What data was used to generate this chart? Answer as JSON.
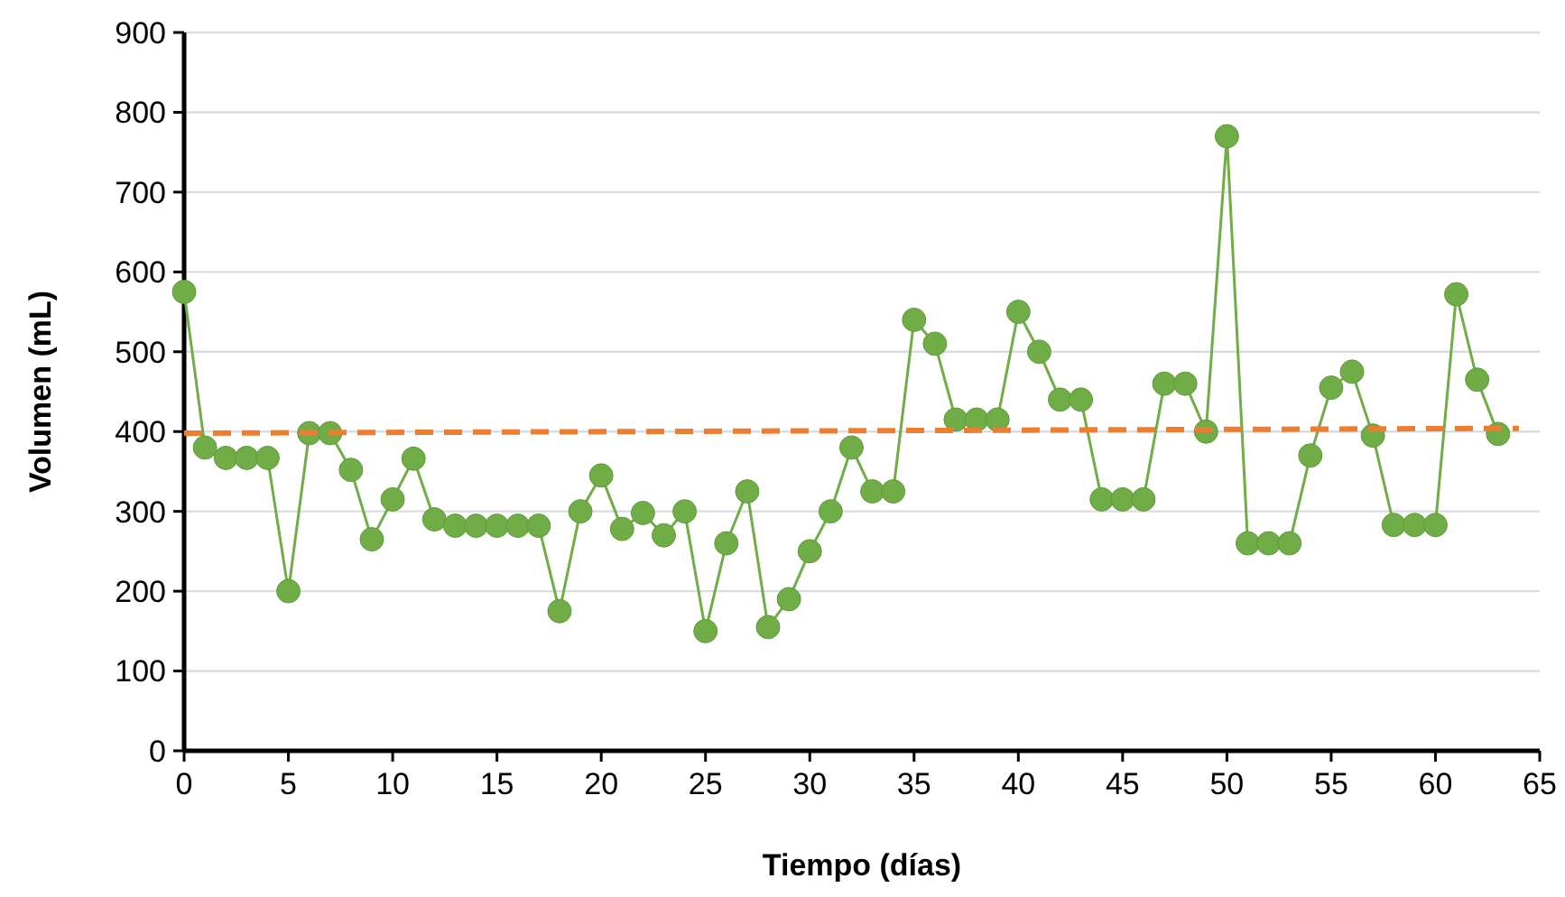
{
  "chart_data": {
    "type": "line",
    "xlabel": "Tiempo (días)",
    "ylabel": "Volumen (mL)",
    "xlim": [
      0,
      65
    ],
    "xticks": [
      0,
      5,
      10,
      15,
      20,
      25,
      30,
      35,
      40,
      45,
      50,
      55,
      60,
      65
    ],
    "ylim": [
      0,
      900
    ],
    "yticks": [
      0,
      100,
      200,
      300,
      400,
      500,
      600,
      700,
      800,
      900
    ],
    "grid": "y",
    "series": [
      {
        "color": "#70ad47",
        "marker": "circle",
        "line_style": "solid",
        "x": [
          0,
          1,
          2,
          3,
          4,
          5,
          6,
          7,
          8,
          9,
          10,
          11,
          12,
          13,
          14,
          15,
          16,
          17,
          18,
          19,
          20,
          21,
          22,
          23,
          24,
          25,
          26,
          27,
          28,
          29,
          30,
          31,
          32,
          33,
          34,
          35,
          36,
          37,
          38,
          39,
          40,
          41,
          42,
          43,
          44,
          45,
          46,
          47,
          48,
          49,
          50,
          51,
          52,
          53,
          54,
          55,
          56,
          57,
          58,
          59,
          60,
          61,
          62,
          63
        ],
        "values": [
          575,
          380,
          367,
          367,
          367,
          200,
          398,
          398,
          352,
          265,
          315,
          366,
          290,
          282,
          282,
          282,
          282,
          282,
          175,
          300,
          345,
          278,
          298,
          270,
          300,
          150,
          260,
          325,
          155,
          190,
          250,
          300,
          380,
          325,
          325,
          540,
          510,
          415,
          415,
          415,
          550,
          500,
          440,
          440,
          315,
          315,
          315,
          460,
          460,
          400,
          770,
          260,
          260,
          260,
          370,
          455,
          475,
          395,
          283,
          283,
          283,
          572,
          465,
          397
        ]
      },
      {
        "color": "#ed7d31",
        "marker": "none",
        "line_style": "dashed",
        "x": [
          0,
          64
        ],
        "values": [
          398,
          404
        ]
      }
    ]
  }
}
